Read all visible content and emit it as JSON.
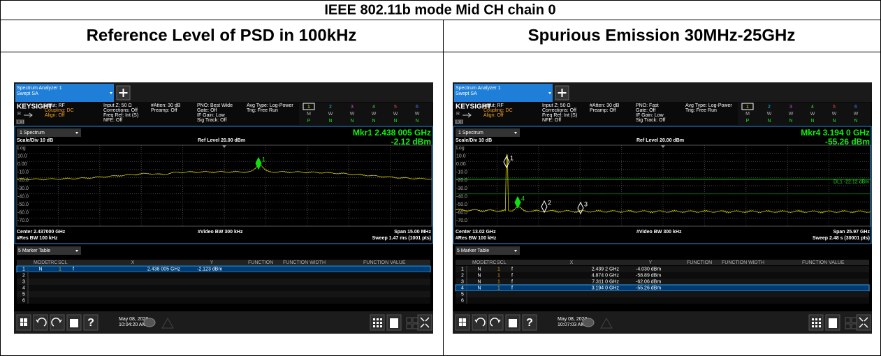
{
  "title": "IEEE 802.11b mode Mid CH chain 0",
  "headers": [
    "Reference Level of PSD in 100kHz",
    "Spurious Emission 30MHz-25GHz"
  ],
  "panels": [
    {
      "tab": [
        "Spectrum Analyzer 1",
        "Swept SA"
      ],
      "brand": "KEYSIGHT",
      "lxi": "LXI",
      "mode_r": "R",
      "input": [
        "Input: RF",
        "Coupling: DC",
        "Align: Off"
      ],
      "col2": [
        "Input Z: 50 Ω",
        "Corrections: Off",
        "Freq Ref: Int (S)",
        "NFE: Off"
      ],
      "col3": [
        "#Atten: 30 dB",
        "Preamp: Off"
      ],
      "col4": [
        "PNO: Best Wide",
        "Gate: Off",
        "IF Gain: Low",
        "Sig Track: Off"
      ],
      "col5": [
        "Avg Type: Log-Power",
        "Trig: Free Run"
      ],
      "traces": [
        "1",
        "2",
        "3",
        "4",
        "5",
        "6"
      ],
      "trace_rows": [
        [
          "M",
          "W",
          "W",
          "W",
          "W",
          "W"
        ],
        [
          "P",
          "N",
          "N",
          "N",
          "N",
          "N"
        ]
      ],
      "window": "1 Spectrum",
      "marker": "Mkr1  2.438 005 GHz",
      "marker_value": "-2.12 dBm",
      "scale": "Scale/Div 10 dB",
      "ref": "Ref Level 20.00 dBm",
      "log": "Log",
      "ylabels": [
        "10.0",
        "0.00",
        "-10.0",
        "-20.0",
        "-30.0",
        "-40.0",
        "-50.0",
        "-60.0",
        "-70.0"
      ],
      "plot_markers": [
        "1"
      ],
      "center": "Center 2.437000 GHz",
      "res": "#Res BW 100 kHz",
      "vbw": "#Video BW 300 kHz",
      "span": "Span 15.00 MHz",
      "sweep": "Sweep 1.47 ms (1001 pts)",
      "table_title": "5 Marker Table",
      "columns": [
        "MODE",
        "TRC",
        "SCL",
        "X",
        "Y",
        "FUNCTION",
        "FUNCTION WIDTH",
        "FUNCTION VALUE"
      ],
      "rows": [
        [
          "1",
          "N",
          "1",
          "f",
          "2.438 005 GHz",
          "-2.123 dBm"
        ],
        [
          "2"
        ],
        [
          "3"
        ],
        [
          "4"
        ],
        [
          "5"
        ],
        [
          "6"
        ]
      ],
      "selected_row": 0,
      "date": [
        "May 08, 2020",
        "10:04:20 AM"
      ]
    },
    {
      "tab": [
        "Spectrum Analyzer 1",
        "Swept SA"
      ],
      "brand": "KEYSIGHT",
      "lxi": "LXI",
      "mode_r": "R",
      "input": [
        "Input: RF",
        "Coupling: DC",
        "Align: Off"
      ],
      "col2": [
        "Input Z: 50 Ω",
        "Corrections: Off",
        "Freq Ref: Int (S)",
        "NFE: Off"
      ],
      "col3": [
        "#Atten: 30 dB",
        "Preamp: Off"
      ],
      "col4": [
        "PNO: Fast",
        "Gate: Off",
        "IF Gain: Low",
        "Sig Track: Off"
      ],
      "col5": [
        "Avg Type: Log-Power",
        "Trig: Free Run"
      ],
      "traces": [
        "1",
        "2",
        "3",
        "4",
        "5",
        "6"
      ],
      "trace_rows": [
        [
          "M",
          "W",
          "W",
          "W",
          "W",
          "W"
        ],
        [
          "P",
          "N",
          "N",
          "N",
          "N",
          "N"
        ]
      ],
      "window": "1 Spectrum",
      "marker": "Mkr4  3.194 0 GHz",
      "marker_value": "-55.26 dBm",
      "scale": "Scale/Div 10 dB",
      "ref": "Ref Level 20.00 dBm",
      "log": "Log",
      "ylabels": [
        "10.0",
        "0.00",
        "-10.0",
        "-20.0",
        "-30.0",
        "-40.0",
        "-50.0",
        "-60.0",
        "-70.0"
      ],
      "plot_markers": [
        "1",
        "2",
        "3",
        "4"
      ],
      "limit_label": "DL1 -22.12 dBm",
      "center": "Center 13.02 GHz",
      "res": "#Res BW 100 kHz",
      "vbw": "#Video BW 300 kHz",
      "span": "Span 25.97 GHz",
      "sweep": "Sweep 2.48 s (30001 pts)",
      "table_title": "5 Marker Table",
      "columns": [
        "MODE",
        "TRC",
        "SCL",
        "X",
        "Y",
        "FUNCTION",
        "FUNCTION WIDTH",
        "FUNCTION VALUE"
      ],
      "rows": [
        [
          "1",
          "N",
          "1",
          "f",
          "2.439 2 GHz",
          "-4.030 dBm"
        ],
        [
          "2",
          "N",
          "1",
          "f",
          "4.874 0 GHz",
          "-58.89 dBm"
        ],
        [
          "3",
          "N",
          "1",
          "f",
          "7.311 0 GHz",
          "-62.06 dBm"
        ],
        [
          "4",
          "N",
          "1",
          "f",
          "3.194 0 GHz",
          "-55.26 dBm"
        ],
        [
          "5"
        ],
        [
          "6"
        ]
      ],
      "selected_row": 3,
      "date": [
        "May 08, 2020",
        "10:07:03 AM"
      ]
    }
  ]
}
